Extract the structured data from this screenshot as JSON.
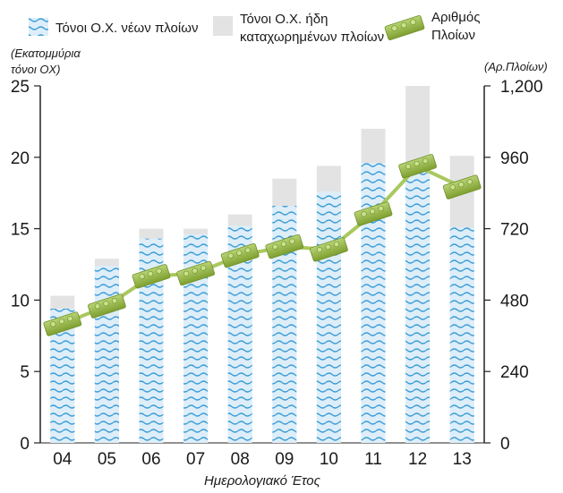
{
  "chart_data": {
    "type": "bar",
    "categories": [
      "04",
      "05",
      "06",
      "07",
      "08",
      "09",
      "10",
      "11",
      "12",
      "13"
    ],
    "series": [
      {
        "name": "Τόνοι Ο.Χ. νέων πλοίων",
        "type": "bar",
        "axis": "left",
        "values": [
          9.4,
          12.4,
          14.3,
          14.6,
          15.2,
          16.6,
          17.6,
          19.6,
          19.5,
          15.1
        ]
      },
      {
        "name": "Τόνοι Ο.Χ. ήδη καταχωρημένων πλοίων",
        "type": "bar",
        "axis": "left",
        "values": [
          10.3,
          12.9,
          15.0,
          15.0,
          16.0,
          18.5,
          19.4,
          22.0,
          25.0,
          20.1
        ]
      },
      {
        "name": "Αριθμός Πλοίων",
        "type": "line",
        "axis": "right",
        "values": [
          400,
          460,
          560,
          570,
          630,
          660,
          650,
          770,
          930,
          860
        ]
      }
    ],
    "left_axis": {
      "label": "(Εκατομμύρια τόνοι ΟΧ)",
      "ticks": [
        "0",
        "5",
        "10",
        "15",
        "20",
        "25"
      ],
      "range": [
        0,
        25
      ]
    },
    "right_axis": {
      "label": "(Αρ.Πλοίων)",
      "ticks": [
        "0",
        "240",
        "480",
        "720",
        "960",
        "1,200"
      ],
      "range": [
        0,
        1200
      ]
    },
    "xlabel": "Ημερολογιακό Έτος",
    "legend": {
      "new_tonnage": "Τόνοι Ο.Χ. νέων πλοίων",
      "existing_line1": "Τόνοι Ο.Χ. ήδη",
      "existing_line2": "καταχωρημένων πλοίων",
      "ships_line1": "Αριθμός",
      "ships_line2": "Πλοίων"
    },
    "colors": {
      "new_tonnage": "#3a9bd5",
      "new_tonnage_bg": "#ddeef9",
      "existing_tonnage": "#e3e3e3",
      "ships_line": "#a9c85f",
      "ships_marker": "#8eb03c",
      "axis": "#222222"
    }
  }
}
